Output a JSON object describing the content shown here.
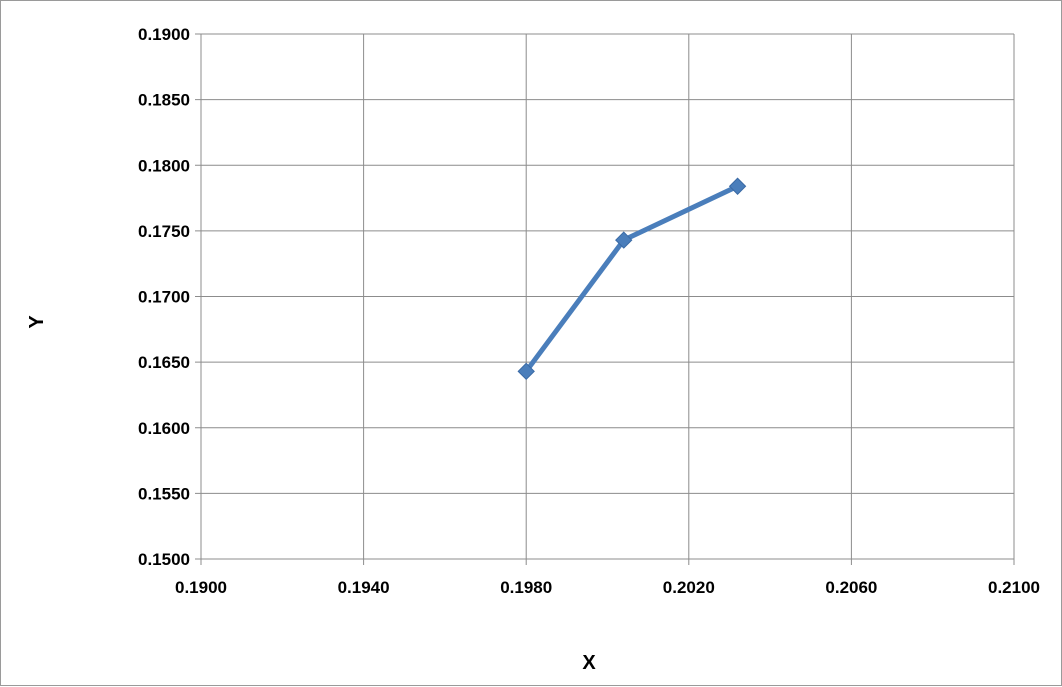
{
  "chart_data": {
    "type": "line",
    "title": "",
    "xlabel": "X",
    "ylabel": "Y",
    "xlim": [
      0.19,
      0.21
    ],
    "ylim": [
      0.15,
      0.19
    ],
    "x_ticks": [
      "0.1900",
      "0.1940",
      "0.1980",
      "0.2020",
      "0.2060",
      "0.2100"
    ],
    "y_ticks": [
      "0.1500",
      "0.1550",
      "0.1600",
      "0.1650",
      "0.1700",
      "0.1750",
      "0.1800",
      "0.1850",
      "0.1900"
    ],
    "grid": true,
    "legend": "none",
    "series": [
      {
        "color": "#4a7ebb",
        "marker": "diamond",
        "x": [
          0.198,
          0.2004,
          0.2032
        ],
        "y": [
          0.1643,
          0.1743,
          0.1784
        ]
      }
    ]
  }
}
